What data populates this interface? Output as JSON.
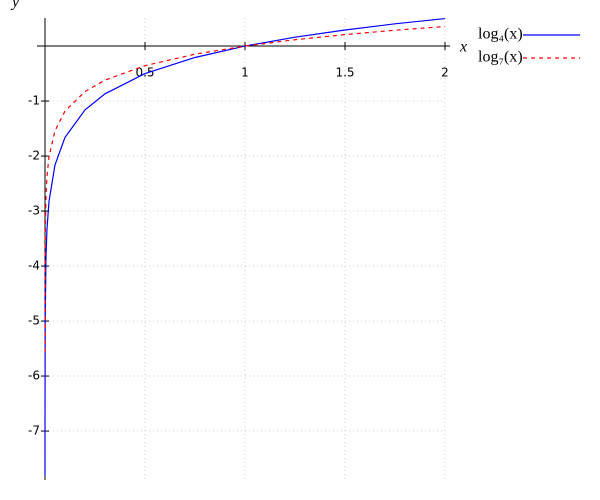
{
  "chart_data": {
    "type": "line",
    "xlabel": "x",
    "ylabel": "y",
    "x": [
      2e-05,
      0.0001,
      0.001,
      0.005,
      0.01,
      0.02,
      0.05,
      0.1,
      0.2,
      0.3,
      0.5,
      0.75,
      1,
      1.25,
      1.5,
      1.75,
      2
    ],
    "series": [
      {
        "name": "log₄(x)",
        "color": "#0000ff",
        "dash": false,
        "values": [
          -7.805,
          -6.644,
          -4.983,
          -3.822,
          -3.322,
          -2.822,
          -2.161,
          -1.661,
          -1.161,
          -0.868,
          -0.5,
          -0.208,
          0,
          0.161,
          0.292,
          0.404,
          0.5
        ]
      },
      {
        "name": "log₇(x)",
        "color": "#ff0000",
        "dash": true,
        "values": [
          -5.56,
          -4.733,
          -3.55,
          -2.723,
          -2.367,
          -2.01,
          -1.54,
          -1.183,
          -0.827,
          -0.619,
          -0.356,
          -0.148,
          0,
          0.115,
          0.208,
          0.288,
          0.356
        ]
      }
    ],
    "xlim": [
      0,
      2
    ],
    "ylim": [
      -7.89,
      0.51
    ],
    "xticks": [
      0.5,
      1,
      1.5,
      2
    ],
    "yticks": [
      -7,
      -6,
      -5,
      -4,
      -3,
      -2,
      -1
    ],
    "grid": true,
    "legend": "upper right"
  }
}
